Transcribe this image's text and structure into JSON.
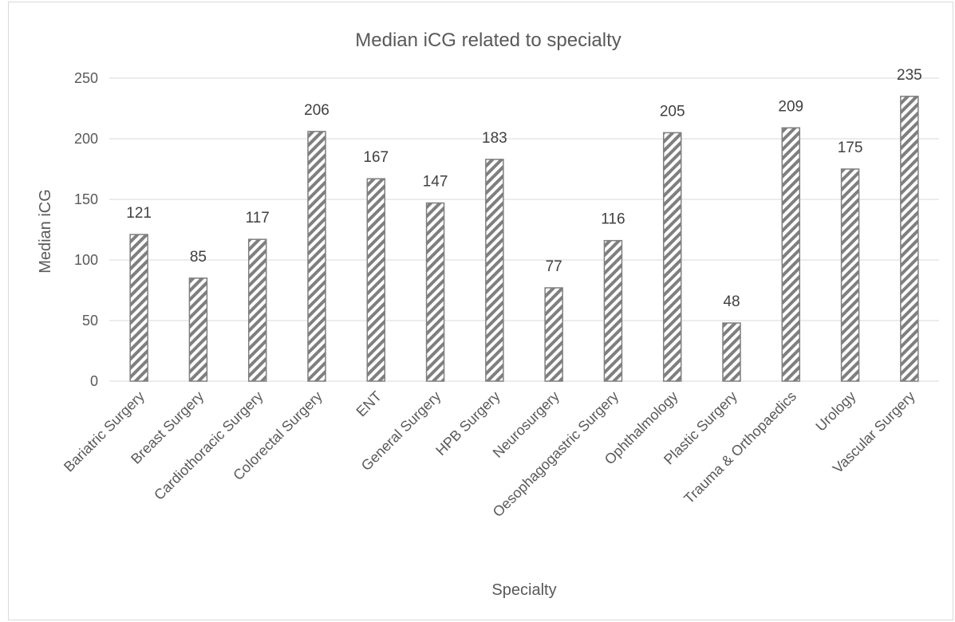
{
  "chart_data": {
    "type": "bar",
    "title": "Median iCG related to specialty",
    "xlabel": "Specialty",
    "ylabel": "Median iCG",
    "ylim": [
      0,
      250
    ],
    "yticks": [
      0,
      50,
      100,
      150,
      200,
      250
    ],
    "grid": true,
    "legend": "none",
    "categories": [
      "Bariatric Surgery",
      "Breast Surgery",
      "Cardiothoracic Surgery",
      "Colorectal Surgery",
      "ENT",
      "General Surgery",
      "HPB Surgery",
      "Neurosurgery",
      "Oesophagogastric Surgery",
      "Ophthalmology",
      "Plastic Surgery",
      "Trauma & Orthopaedics",
      "Urology",
      "Vascular Surgery"
    ],
    "values": [
      121,
      85,
      117,
      206,
      167,
      147,
      183,
      77,
      116,
      205,
      48,
      209,
      175,
      235
    ],
    "colors": {
      "bar_hatch": "#7f7f7f",
      "bar_outline": "#7f7f7f",
      "grid": "#d9d9d9",
      "text": "#595959",
      "data_label": "#404040"
    }
  }
}
